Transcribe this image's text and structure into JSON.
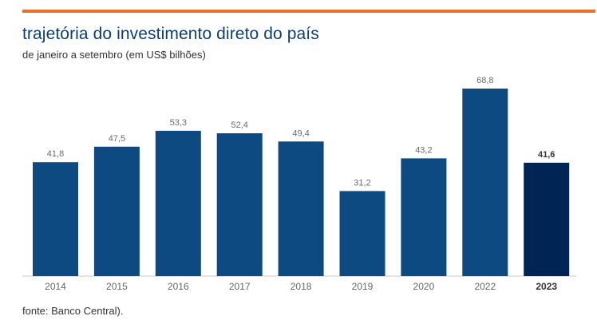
{
  "header": {
    "title": "trajetória do investimento direto do país",
    "subtitle": "de janeiro a setembro (em US$ bilhões)"
  },
  "footer": {
    "source": "fonte: Banco Central)."
  },
  "colors": {
    "accent_rule": "#e8702a",
    "bar": "#0d4a82",
    "bar_highlight": "#002554",
    "title": "#0d3f73"
  },
  "chart_data": {
    "type": "bar",
    "title": "trajetória do investimento direto do país",
    "subtitle": "de janeiro a setembro (em US$ bilhões)",
    "categories": [
      "2014",
      "2015",
      "2016",
      "2017",
      "2018",
      "2019",
      "2020",
      "2022",
      "2023"
    ],
    "values": [
      41.8,
      47.5,
      53.3,
      52.4,
      49.4,
      31.2,
      43.2,
      68.8,
      41.6
    ],
    "value_labels": [
      "41,8",
      "47,5",
      "53,3",
      "52,4",
      "49,4",
      "31,2",
      "43,2",
      "68,8",
      "41,6"
    ],
    "highlight_category": "2023",
    "xlabel": "",
    "ylabel": "",
    "ylim": [
      0,
      68.8
    ],
    "grid": false,
    "legend": "none"
  }
}
